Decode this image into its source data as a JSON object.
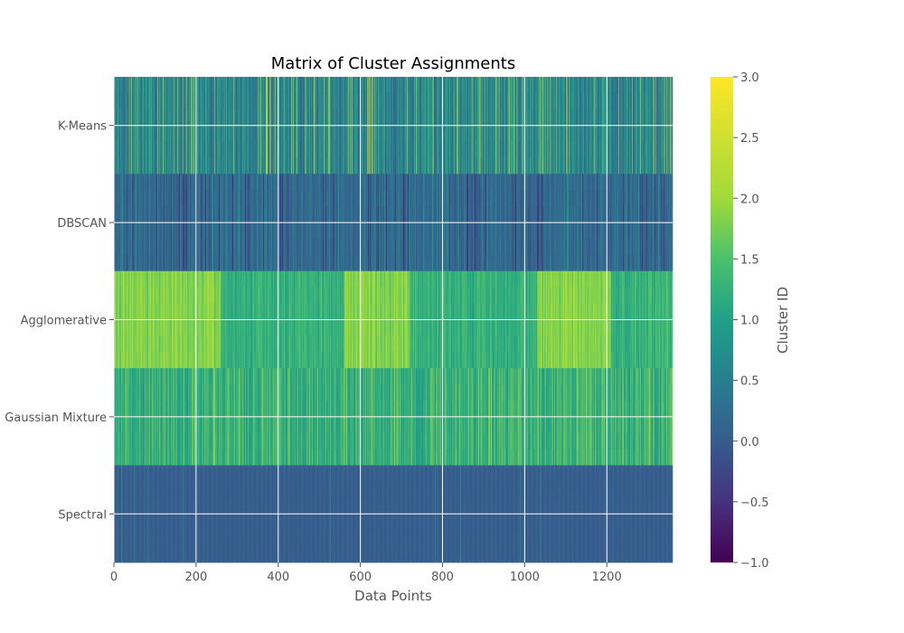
{
  "chart_data": {
    "type": "heatmap",
    "title": "Matrix of Cluster Assignments",
    "xlabel": "Data Points",
    "ylabel": "",
    "xlim": [
      0,
      1360
    ],
    "x_ticks": [
      "0",
      "200",
      "400",
      "600",
      "800",
      "1000",
      "1200"
    ],
    "x_tick_values": [
      0,
      200,
      400,
      600,
      800,
      1000,
      1200
    ],
    "rows": [
      "K-Means",
      "DBSCAN",
      "Agglomerative",
      "Gaussian Mixture",
      "Spectral"
    ],
    "colormap": "viridis",
    "grid": true,
    "colorbar": {
      "label": "Cluster ID",
      "range": [
        -1.0,
        3.0
      ],
      "ticks": [
        "3.0",
        "2.5",
        "2.0",
        "1.5",
        "1.0",
        "0.5",
        "0.0",
        "−0.5",
        "−1.0"
      ],
      "tick_values": [
        3.0,
        2.5,
        2.0,
        1.5,
        1.0,
        0.5,
        0.0,
        -0.5,
        -1.0
      ]
    },
    "row_profiles": [
      {
        "row": "K-Means",
        "typical_value": 0.4,
        "notes": "mixed 0-1 with sparse 2-3 streaks"
      },
      {
        "row": "DBSCAN",
        "typical_value": 0.0,
        "notes": "mostly 0 with sparse -1 streaks"
      },
      {
        "row": "Agglomerative",
        "typical_value": 1.6,
        "notes": "high band near 2 around 0-250, 600-700, 1050-1200"
      },
      {
        "row": "Gaussian Mixture",
        "typical_value": 1.1,
        "notes": "mixed 1-2"
      },
      {
        "row": "Spectral",
        "typical_value": 0.0,
        "notes": "uniform 0"
      }
    ]
  }
}
